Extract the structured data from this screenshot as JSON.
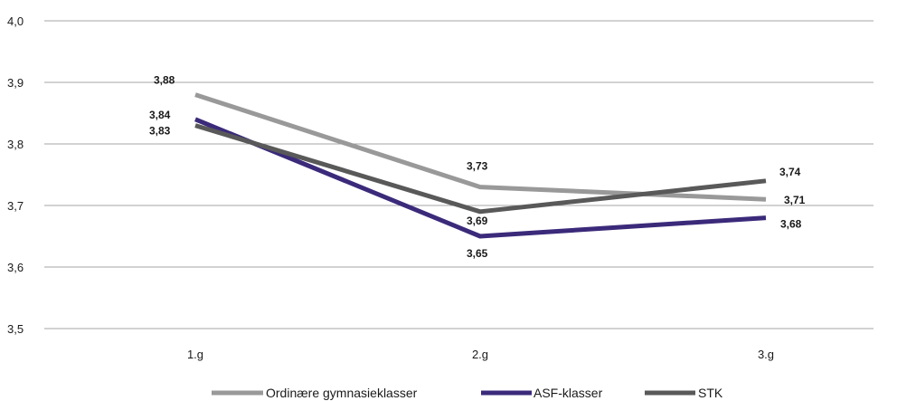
{
  "chart_data": {
    "type": "line",
    "title": "",
    "xlabel": "",
    "ylabel": "",
    "categories": [
      "1.g",
      "2.g",
      "3.g"
    ],
    "y_ticks": [
      "3,5",
      "3,6",
      "3,7",
      "3,8",
      "3,9",
      "4,0"
    ],
    "ylim": [
      3.5,
      4.0
    ],
    "grid": true,
    "legend_position": "bottom",
    "series": [
      {
        "name": "Ordinære gymnasieklasser",
        "color": "#999999",
        "values": [
          3.88,
          3.73,
          3.71
        ],
        "labels": [
          "3,88",
          "3,73",
          "3,71"
        ]
      },
      {
        "name": "ASF-klasser",
        "color": "#3b2a7a",
        "values": [
          3.84,
          3.65,
          3.68
        ],
        "labels": [
          "3,84",
          "3,65",
          "3,68"
        ]
      },
      {
        "name": "STK",
        "color": "#595959",
        "values": [
          3.83,
          3.69,
          3.74
        ],
        "labels": [
          "3,83",
          "3,69",
          "3,74"
        ]
      }
    ]
  }
}
